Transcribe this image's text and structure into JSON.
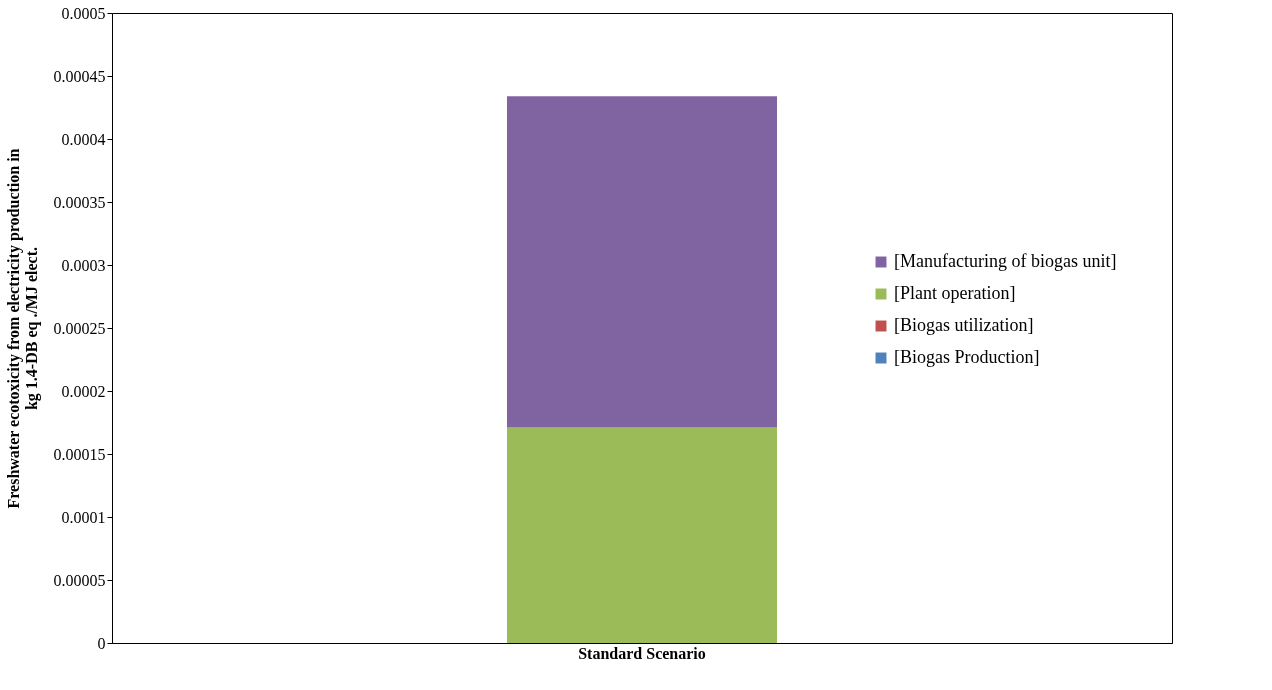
{
  "chart_data": {
    "type": "bar",
    "stacked": true,
    "categories": [
      "Standard Scenario"
    ],
    "ylabel": "Freshwater ecotoxicity  from electricity production in\nkg 1.4-DB eq ./MJ elect.",
    "series": [
      {
        "name": "[Biogas Production]",
        "color": "#4f81bd",
        "values": [
          0
        ]
      },
      {
        "name": "[Biogas utilization]",
        "color": "#c0504d",
        "values": [
          0
        ]
      },
      {
        "name": "[Plant operation]",
        "color": "#9bbb59",
        "values": [
          0.000171
        ]
      },
      {
        "name": "[Manufacturing of biogas unit]",
        "color": "#8064a2",
        "values": [
          0.000263
        ]
      }
    ],
    "ylim": [
      0,
      0.0005
    ],
    "yticks": [
      0,
      {
        "value": 5e-05,
        "label": "0.00005"
      },
      {
        "value": 0.0001,
        "label": "0.0001"
      },
      {
        "value": 0.00015,
        "label": "0.00015"
      },
      {
        "value": 0.0002,
        "label": "0.0002"
      },
      {
        "value": 0.00025,
        "label": "0.00025"
      },
      {
        "value": 0.0003,
        "label": "0.0003"
      },
      {
        "value": 0.00035,
        "label": "0.00035"
      },
      {
        "value": 0.0004,
        "label": "0.0004"
      },
      {
        "value": 0.00045,
        "label": "0.00045"
      },
      {
        "value": 0.0005,
        "label": "0.0005"
      }
    ],
    "grid": false,
    "legend": "right"
  }
}
